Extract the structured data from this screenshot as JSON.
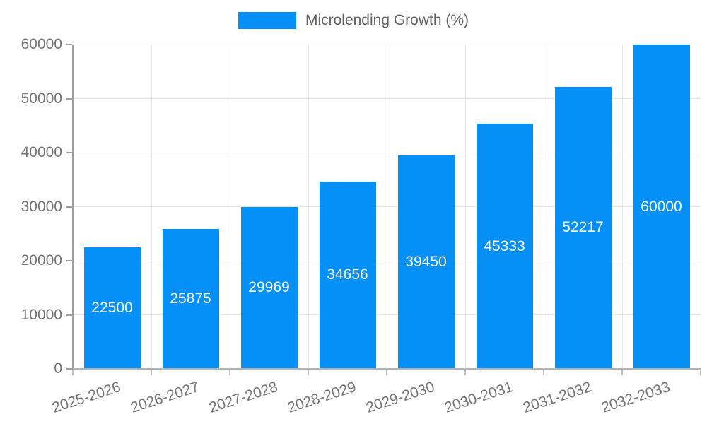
{
  "legend": {
    "label": "Microlending Growth (%)"
  },
  "colors": {
    "bar": "#0590f8",
    "grid": "#e6e6e6",
    "axis": "#b3b3b3",
    "y_axis": "#9e9e9e",
    "axis_text": "#757575",
    "legend_text": "#616161",
    "value_text": "#ffffff",
    "background": "#ffffff"
  },
  "chart_data": {
    "type": "bar",
    "categories": [
      "2025-2026",
      "2026-2027",
      "2027-2028",
      "2028-2029",
      "2029-2030",
      "2030-2031",
      "2031-2032",
      "2032-2033"
    ],
    "values": [
      22500,
      25875,
      29969,
      34656,
      39450,
      45333,
      52217,
      60000
    ],
    "series_name": "Microlending Growth (%)",
    "title": "",
    "xlabel": "",
    "ylabel": "",
    "ylim": [
      0,
      60000
    ],
    "yticks": [
      0,
      10000,
      20000,
      30000,
      40000,
      50000,
      60000
    ],
    "grid": true,
    "legend_position": "top",
    "bar_labels": "inside-center"
  }
}
